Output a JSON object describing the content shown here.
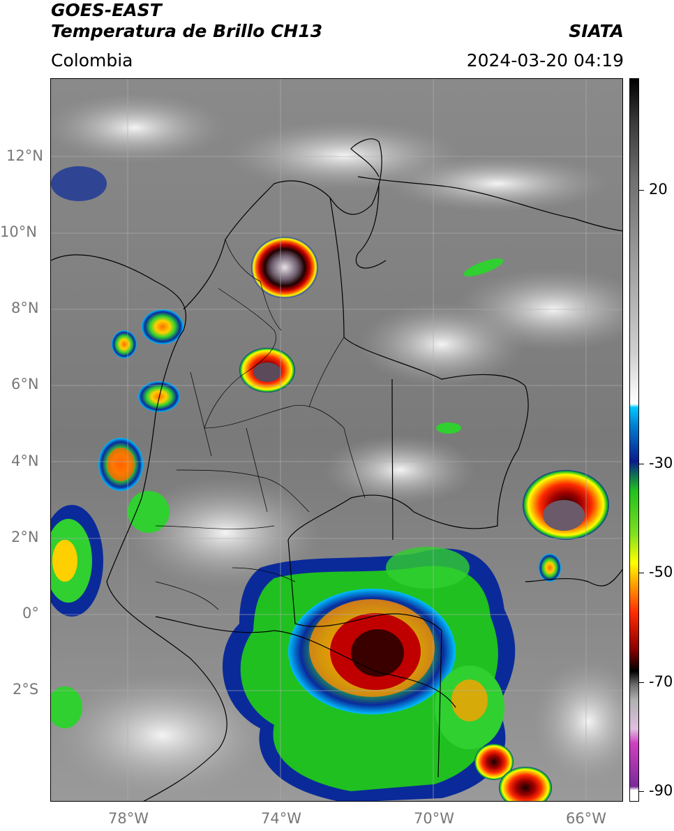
{
  "header": {
    "title_line1": "GOES-EAST",
    "title_line2": "Temperatura de Brillo CH13",
    "region": "Colombia",
    "brand": "SIATA",
    "datetime": "2024-03-20 04:19"
  },
  "map": {
    "latitude_labels": [
      "12°N",
      "10°N",
      "8°N",
      "6°N",
      "4°N",
      "2°N",
      "0°",
      "2°S"
    ],
    "longitude_labels": [
      "78°W",
      "74°W",
      "70°W",
      "66°W"
    ]
  },
  "colorbar": {
    "ticks": [
      "20",
      "-30",
      "-50",
      "-70",
      "-90"
    ],
    "colors": {
      "black": "#000000",
      "dark_red": "#8b0000",
      "red": "#ff0000",
      "orange": "#ff8c00",
      "yellow": "#ffff00",
      "green": "#00c000",
      "dark_blue": "#0b1a8c",
      "cyan": "#00c8ff",
      "magenta": "#d040c0",
      "purple": "#7a2a9a"
    }
  }
}
